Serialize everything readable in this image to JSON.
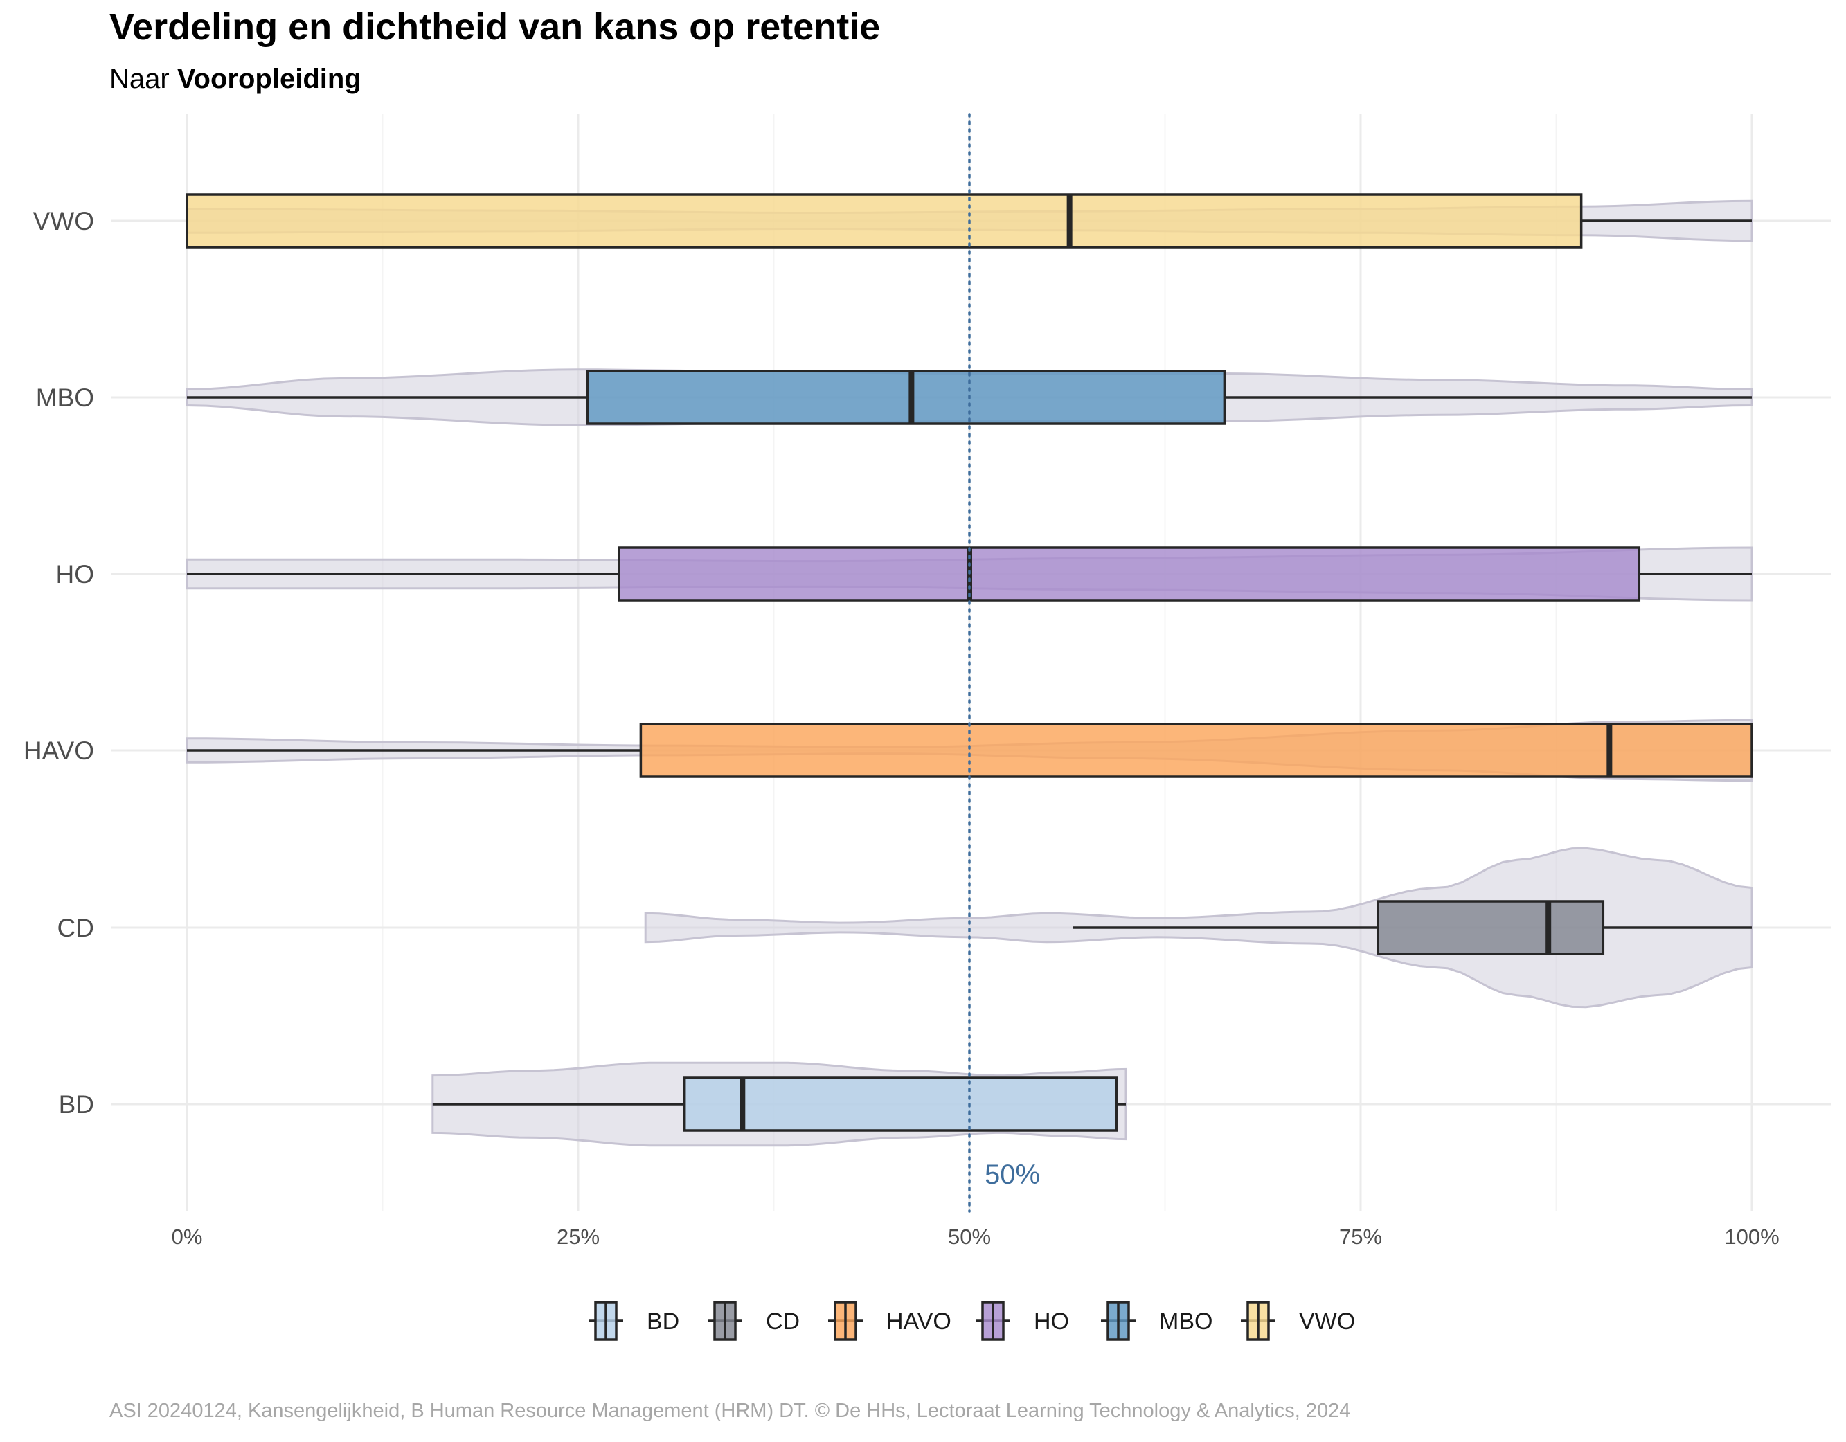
{
  "chart_data": {
    "type": "boxplot",
    "title": "Verdeling en dichtheid van kans op retentie",
    "subtitle_prefix": "Naar",
    "subtitle_bold": "Vooropleiding",
    "caption": "ASI 20240124, Kansengelijkheid, B Human Resource Management (HRM) DT. © De HHs, Lectoraat Learning Technology & Analytics, 2024",
    "xlim": [
      0,
      100
    ],
    "x_ticks": [
      0,
      25,
      50,
      75,
      100
    ],
    "x_tick_labels": [
      "0%",
      "25%",
      "50%",
      "75%",
      "100%"
    ],
    "reference_line": {
      "value": 50,
      "label": "50%",
      "color": "#3e6d9c",
      "style": "dotted"
    },
    "grid": true,
    "legend_position": "bottom",
    "violin_color": "#d2d0dc",
    "categories": [
      "VWO",
      "MBO",
      "HO",
      "HAVO",
      "CD",
      "BD"
    ],
    "series": [
      {
        "name": "VWO",
        "color": "#f6d98f",
        "min": 0,
        "q1": 0,
        "median": 56.4,
        "q3": 89.1,
        "max": 100,
        "density": [
          [
            0,
            0.15
          ],
          [
            20,
            0.13
          ],
          [
            40,
            0.1
          ],
          [
            56,
            0.12
          ],
          [
            75,
            0.15
          ],
          [
            89,
            0.18
          ],
          [
            100,
            0.25
          ]
        ]
      },
      {
        "name": "MBO",
        "color": "#5e97c2",
        "min": 0,
        "q1": 25.6,
        "median": 46.3,
        "q3": 66.3,
        "max": 100,
        "density": [
          [
            0,
            0.1
          ],
          [
            10,
            0.24
          ],
          [
            25,
            0.35
          ],
          [
            35,
            0.33
          ],
          [
            50,
            0.3
          ],
          [
            66,
            0.3
          ],
          [
            80,
            0.22
          ],
          [
            92,
            0.15
          ],
          [
            100,
            0.1
          ]
        ]
      },
      {
        "name": "HO",
        "color": "#a78bcd",
        "min": 0,
        "q1": 27.6,
        "median": 50.0,
        "q3": 92.8,
        "max": 100,
        "density": [
          [
            0,
            0.18
          ],
          [
            20,
            0.18
          ],
          [
            40,
            0.16
          ],
          [
            60,
            0.2
          ],
          [
            80,
            0.24
          ],
          [
            100,
            0.33
          ]
        ]
      },
      {
        "name": "HAVO",
        "color": "#fba65c",
        "min": 0,
        "q1": 29.0,
        "median": 90.9,
        "q3": 100,
        "max": 100,
        "density": [
          [
            0,
            0.15
          ],
          [
            15,
            0.1
          ],
          [
            30,
            0.06
          ],
          [
            45,
            0.04
          ],
          [
            60,
            0.1
          ],
          [
            80,
            0.25
          ],
          [
            92,
            0.36
          ],
          [
            100,
            0.38
          ]
        ]
      },
      {
        "name": "CD",
        "color": "#828691",
        "min": 56.6,
        "q1": 76.1,
        "median": 87.0,
        "q3": 90.5,
        "max": 100,
        "density_range": [
          29.3,
          100
        ],
        "density": [
          [
            29.3,
            0.18
          ],
          [
            35,
            0.1
          ],
          [
            42,
            0.06
          ],
          [
            50,
            0.12
          ],
          [
            55,
            0.18
          ],
          [
            62,
            0.12
          ],
          [
            72,
            0.2
          ],
          [
            80,
            0.5
          ],
          [
            85,
            0.85
          ],
          [
            89,
            1.0
          ],
          [
            94,
            0.85
          ],
          [
            100,
            0.5
          ]
        ]
      },
      {
        "name": "BD",
        "color": "#b4cfe8",
        "min": 15.7,
        "q1": 31.8,
        "median": 35.5,
        "q3": 59.4,
        "max": 60.0,
        "density_range": [
          15.7,
          60.0
        ],
        "density": [
          [
            15.7,
            0.36
          ],
          [
            22,
            0.42
          ],
          [
            30,
            0.52
          ],
          [
            38,
            0.52
          ],
          [
            46,
            0.42
          ],
          [
            52,
            0.36
          ],
          [
            56,
            0.4
          ],
          [
            60,
            0.44
          ]
        ]
      }
    ],
    "legend_order": [
      "BD",
      "CD",
      "HAVO",
      "HO",
      "MBO",
      "VWO"
    ]
  }
}
